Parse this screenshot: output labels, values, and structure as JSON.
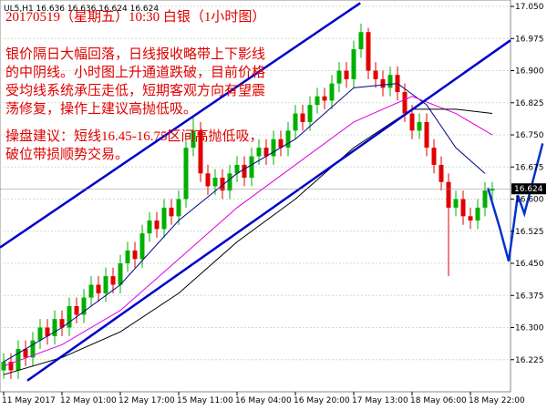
{
  "chart_data": {
    "type": "candlestick",
    "header": "UL5,H1  16.636 16.636 16.624 16.624",
    "title": "20170519（星期五）10:30 白银（1小时图）",
    "commentary": [
      "银价隔日大幅回落，日线报收略带上下影线",
      "的中阴线。小时图上升通道跌破，目前价格",
      "受均线系统承压走低，短期客观方向有望震",
      "荡修复，操作上建议高抛低吸。"
    ],
    "advice": [
      "操盘建议：短线16.45-16.75区间高抛低吸，",
      "破位带损顺势交易。"
    ],
    "categories": [
      "11 May 2017",
      null,
      null,
      null,
      null,
      null,
      null,
      null,
      "12 May 01:00",
      null,
      null,
      null,
      null,
      null,
      null,
      null,
      "12 May 17:00",
      null,
      null,
      null,
      null,
      null,
      null,
      null,
      "15 May 11:00",
      null,
      null,
      null,
      null,
      null,
      null,
      null,
      "16 May 04:00",
      null,
      null,
      null,
      null,
      null,
      null,
      null,
      "16 May 20:00",
      null,
      null,
      null,
      null,
      null,
      null,
      null,
      "17 May 13:00",
      null,
      null,
      null,
      null,
      null,
      null,
      null,
      "18 May 06:00",
      null,
      null,
      null,
      null,
      null,
      null,
      null,
      "18 May 22:00",
      null,
      null,
      null
    ],
    "open": [
      16.2,
      16.22,
      16.2,
      16.25,
      16.23,
      16.27,
      16.3,
      16.28,
      16.32,
      16.3,
      16.35,
      16.33,
      16.37,
      16.4,
      16.38,
      16.42,
      16.4,
      16.45,
      16.48,
      16.46,
      16.52,
      16.55,
      16.53,
      16.58,
      16.56,
      16.6,
      16.72,
      16.76,
      16.66,
      16.63,
      16.65,
      16.62,
      16.66,
      16.68,
      16.65,
      16.7,
      16.72,
      16.7,
      16.74,
      16.72,
      16.76,
      16.8,
      16.78,
      16.82,
      16.84,
      16.83,
      16.87,
      16.9,
      16.88,
      16.95,
      16.99,
      16.9,
      16.88,
      16.86,
      16.89,
      16.85,
      16.8,
      16.76,
      16.78,
      16.72,
      16.68,
      16.64,
      16.58,
      16.6,
      16.56,
      16.55,
      16.58,
      16.62
    ],
    "high": [
      16.24,
      16.24,
      16.27,
      16.27,
      16.29,
      16.32,
      16.32,
      16.34,
      16.34,
      16.37,
      16.37,
      16.39,
      16.42,
      16.42,
      16.44,
      16.44,
      16.47,
      16.5,
      16.5,
      16.54,
      16.57,
      16.57,
      16.6,
      16.6,
      16.62,
      16.74,
      16.79,
      16.78,
      16.68,
      16.67,
      16.67,
      16.68,
      16.7,
      16.7,
      16.72,
      16.74,
      16.74,
      16.76,
      16.76,
      16.78,
      16.82,
      16.82,
      16.84,
      16.86,
      16.86,
      16.89,
      16.92,
      16.92,
      16.97,
      17.01,
      17.0,
      16.92,
      16.9,
      16.91,
      16.91,
      16.87,
      16.82,
      16.8,
      16.8,
      16.74,
      16.7,
      16.66,
      16.62,
      16.62,
      16.58,
      16.6,
      16.64,
      16.64
    ],
    "low": [
      16.18,
      16.18,
      16.18,
      16.21,
      16.21,
      16.25,
      16.26,
      16.26,
      16.28,
      16.28,
      16.31,
      16.31,
      16.35,
      16.36,
      16.36,
      16.38,
      16.38,
      16.43,
      16.44,
      16.44,
      16.5,
      16.51,
      16.51,
      16.54,
      16.54,
      16.58,
      16.7,
      16.64,
      16.61,
      16.61,
      16.6,
      16.6,
      16.64,
      16.63,
      16.63,
      16.68,
      16.68,
      16.68,
      16.7,
      16.7,
      16.74,
      16.76,
      16.76,
      16.8,
      16.81,
      16.81,
      16.85,
      16.86,
      16.86,
      16.93,
      16.88,
      16.86,
      16.84,
      16.84,
      16.83,
      16.78,
      16.74,
      16.74,
      16.7,
      16.66,
      16.62,
      16.42,
      16.56,
      16.54,
      16.53,
      16.53,
      16.56,
      16.6
    ],
    "close": [
      16.22,
      16.2,
      16.25,
      16.23,
      16.27,
      16.3,
      16.28,
      16.32,
      16.3,
      16.35,
      16.33,
      16.37,
      16.4,
      16.38,
      16.42,
      16.4,
      16.45,
      16.48,
      16.46,
      16.52,
      16.55,
      16.53,
      16.58,
      16.56,
      16.6,
      16.72,
      16.76,
      16.66,
      16.63,
      16.65,
      16.62,
      16.66,
      16.68,
      16.65,
      16.7,
      16.72,
      16.7,
      16.74,
      16.72,
      16.76,
      16.8,
      16.78,
      16.82,
      16.84,
      16.83,
      16.87,
      16.9,
      16.88,
      16.95,
      16.99,
      16.9,
      16.88,
      16.86,
      16.89,
      16.85,
      16.8,
      16.76,
      16.78,
      16.72,
      16.68,
      16.64,
      16.58,
      16.6,
      16.56,
      16.55,
      16.58,
      16.62,
      16.624
    ],
    "up_color": "#00b000",
    "down_color": "#e00000",
    "series": [
      {
        "color": "#00008b",
        "x": [
          0,
          8,
          16,
          24,
          32,
          40,
          48,
          54,
          58,
          62,
          66
        ],
        "values": [
          16.22,
          16.3,
          16.4,
          16.55,
          16.66,
          16.74,
          16.86,
          16.87,
          16.82,
          16.72,
          16.66
        ]
      },
      {
        "color": "#e000e0",
        "x": [
          0,
          8,
          16,
          24,
          32,
          40,
          48,
          56,
          62,
          67
        ],
        "values": [
          16.21,
          16.26,
          16.34,
          16.46,
          16.58,
          16.68,
          16.78,
          16.84,
          16.8,
          16.75
        ]
      },
      {
        "color": "#000000",
        "x": [
          0,
          8,
          16,
          24,
          32,
          40,
          48,
          56,
          62,
          67
        ],
        "values": [
          16.19,
          16.23,
          16.29,
          16.38,
          16.5,
          16.6,
          16.72,
          16.81,
          16.81,
          16.8
        ]
      }
    ],
    "trend_lines": [
      {
        "color": "#0000cc",
        "x": [
          -0.5,
          48.9
        ],
        "values": [
          16.487,
          17.058
        ]
      },
      {
        "color": "#0000cc",
        "x": [
          3.25,
          69.5
        ],
        "values": [
          16.176,
          16.971
        ]
      },
      {
        "color": "#0033cc",
        "x": [
          66.4,
          68,
          69.25,
          70.5,
          71.4,
          73.9
        ],
        "values": [
          16.626,
          16.534,
          16.455,
          16.609,
          16.566,
          16.73
        ]
      }
    ],
    "last_price": 16.624,
    "ylim": [
      16.15,
      17.065
    ],
    "yticks": [
      16.225,
      {
        "value": 16.3,
        "label": "16.300"
      },
      16.375,
      {
        "value": 16.45,
        "label": "16.450"
      },
      16.525,
      {
        "value": 16.6,
        "label": "16.600"
      },
      16.675,
      {
        "value": 16.75,
        "label": "16.750"
      },
      16.825,
      {
        "value": 16.9,
        "label": "16.900"
      },
      16.975,
      {
        "value": 17.05,
        "label": "17.050"
      }
    ],
    "grid": true
  }
}
